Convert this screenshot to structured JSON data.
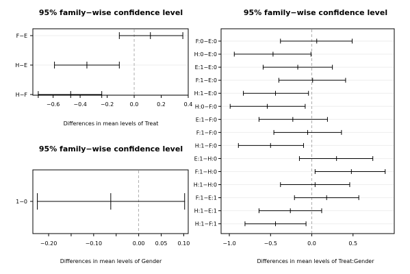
{
  "chart_data": [
    {
      "type": "errorbar",
      "title": "95% family−wise confidence level",
      "xlabel": "Differences in mean levels of Treat",
      "xlim": [
        -0.75,
        0.4
      ],
      "xticks": [
        -0.6,
        -0.4,
        -0.2,
        0.0,
        0.2,
        0.4
      ],
      "xtick_labels": [
        "−0.6",
        "−0.4",
        "−0.2",
        "0.0",
        "0.2",
        "0.4"
      ],
      "reference_line": 0,
      "intervals": [
        {
          "label": "F−E",
          "lower": -0.11,
          "estimate": 0.12,
          "upper": 0.36
        },
        {
          "label": "H−E",
          "lower": -0.59,
          "estimate": -0.35,
          "upper": -0.11
        },
        {
          "label": "H−F",
          "lower": -0.71,
          "estimate": -0.47,
          "upper": -0.24
        }
      ]
    },
    {
      "type": "errorbar",
      "title": "95% family−wise confidence level",
      "xlabel": "Differences in mean levels of Gender",
      "xlim": [
        -0.235,
        0.11
      ],
      "xticks": [
        -0.2,
        -0.15,
        -0.1,
        -0.05,
        0.0,
        0.05,
        0.1
      ],
      "xtick_labels": [
        "−0.20",
        "",
        "−0.10",
        "",
        "0.00",
        "0.05",
        "0.10"
      ],
      "reference_line": 0,
      "intervals": [
        {
          "label": "1−0",
          "lower": -0.225,
          "estimate": -0.062,
          "upper": 0.102
        }
      ]
    },
    {
      "type": "errorbar",
      "title": "95% family−wise confidence level",
      "xlabel": "Differences in mean levels of Treat:Gender",
      "xlim": [
        -1.1,
        1.0
      ],
      "xticks": [
        -1.0,
        -0.5,
        0.0,
        0.5
      ],
      "xtick_labels": [
        "−1.0",
        "−0.5",
        "0.0",
        "0.5"
      ],
      "reference_line": 0,
      "intervals": [
        {
          "label": "F:0−E:0",
          "lower": -0.38,
          "estimate": 0.06,
          "upper": 0.49
        },
        {
          "label": "H:0−E:0",
          "lower": -0.94,
          "estimate": -0.47,
          "upper": -0.01
        },
        {
          "label": "E:1−E:0",
          "lower": -0.59,
          "estimate": -0.17,
          "upper": 0.25
        },
        {
          "label": "F:1−E:0",
          "lower": -0.4,
          "estimate": 0.01,
          "upper": 0.41
        },
        {
          "label": "H:1−E:0",
          "lower": -0.83,
          "estimate": -0.44,
          "upper": -0.04
        },
        {
          "label": "H:0−F:0",
          "lower": -0.99,
          "estimate": -0.54,
          "upper": -0.08
        },
        {
          "label": "E:1−F:0",
          "lower": -0.64,
          "estimate": -0.23,
          "upper": 0.19
        },
        {
          "label": "F:1−F:0",
          "lower": -0.46,
          "estimate": -0.05,
          "upper": 0.36
        },
        {
          "label": "H:1−F:0",
          "lower": -0.89,
          "estimate": -0.5,
          "upper": -0.1
        },
        {
          "label": "E:1−H:0",
          "lower": -0.15,
          "estimate": 0.3,
          "upper": 0.74
        },
        {
          "label": "F:1−H:0",
          "lower": 0.04,
          "estimate": 0.48,
          "upper": 0.89
        },
        {
          "label": "H:1−H:0",
          "lower": -0.38,
          "estimate": 0.04,
          "upper": 0.46
        },
        {
          "label": "F:1−E:1",
          "lower": -0.21,
          "estimate": 0.18,
          "upper": 0.57
        },
        {
          "label": "H:1−E:1",
          "lower": -0.64,
          "estimate": -0.26,
          "upper": 0.12
        },
        {
          "label": "H:1−F:1",
          "lower": -0.81,
          "estimate": -0.44,
          "upper": -0.07
        }
      ]
    }
  ]
}
